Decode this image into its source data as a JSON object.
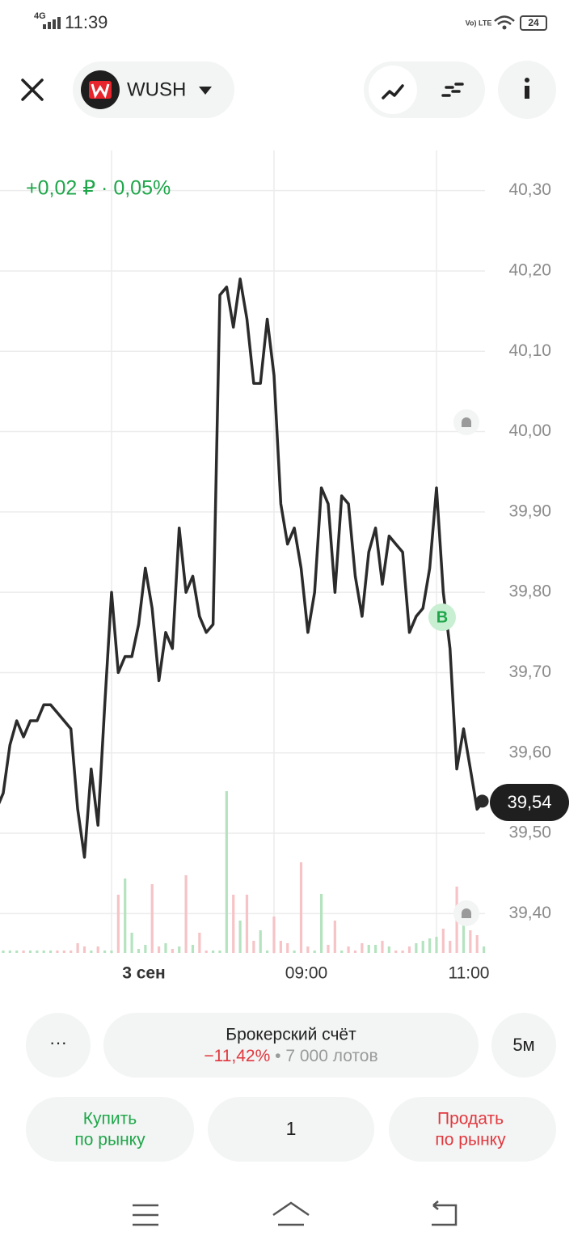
{
  "status_bar": {
    "network": "4G",
    "time": "11:39",
    "volte": "Vo) LTE",
    "battery": "24"
  },
  "header": {
    "ticker": "WUSH"
  },
  "chart_data": {
    "type": "line",
    "change_label": "+0,02 ₽ · 0,05%",
    "price_label": "39,54",
    "trade_marker": "B",
    "categories": [
      null,
      null,
      null,
      null,
      null,
      null,
      null,
      null,
      null,
      null,
      null,
      null,
      null,
      null,
      null,
      null,
      null,
      "3 сен",
      null,
      null,
      null,
      null,
      null,
      null,
      null,
      null,
      null,
      null,
      null,
      null,
      null,
      null,
      null,
      null,
      null,
      null,
      null,
      null,
      null,
      null,
      null,
      "09:00",
      null,
      null,
      null,
      null,
      null,
      null,
      null,
      null,
      null,
      null,
      null,
      null,
      null,
      null,
      null,
      null,
      null,
      null,
      null,
      null,
      null,
      null,
      null,
      "11:00",
      null,
      null,
      null,
      null,
      null,
      null,
      null
    ],
    "values": [
      39.53,
      39.55,
      39.61,
      39.64,
      39.62,
      39.64,
      39.64,
      39.66,
      39.66,
      39.65,
      39.64,
      39.63,
      39.53,
      39.47,
      39.58,
      39.51,
      39.66,
      39.8,
      39.7,
      39.72,
      39.72,
      39.76,
      39.83,
      39.78,
      39.69,
      39.75,
      39.73,
      39.88,
      39.8,
      39.82,
      39.77,
      39.75,
      39.76,
      40.17,
      40.18,
      40.13,
      40.19,
      40.14,
      40.06,
      40.06,
      40.14,
      40.07,
      39.91,
      39.86,
      39.88,
      39.83,
      39.75,
      39.8,
      39.93,
      39.91,
      39.8,
      39.92,
      39.91,
      39.82,
      39.77,
      39.85,
      39.88,
      39.81,
      39.87,
      39.86,
      39.85,
      39.75,
      39.77,
      39.78,
      39.83,
      39.93,
      39.8,
      39.73,
      39.58,
      39.63,
      39.58,
      39.53,
      39.54
    ],
    "color": "#2b2b2b",
    "ylim": [
      39.35,
      40.35
    ],
    "yticks": [
      {
        "value": 39.4,
        "label": "39,40"
      },
      {
        "value": 39.5,
        "label": "39,50"
      },
      {
        "value": 39.6,
        "label": "39,60"
      },
      {
        "value": 39.7,
        "label": "39,70"
      },
      {
        "value": 39.8,
        "label": "39,80"
      },
      {
        "value": 39.9,
        "label": "39,90"
      },
      {
        "value": 40.0,
        "label": "40,00"
      },
      {
        "value": 40.1,
        "label": "40,10"
      },
      {
        "value": 40.2,
        "label": "40,20"
      },
      {
        "value": 40.3,
        "label": "40,30"
      }
    ],
    "grid": true,
    "volume": {
      "axis": "y2",
      "y2lim": [
        0,
        210
      ],
      "up_color": "#b5e3bf",
      "down_color": "#f6c3c6",
      "values": [
        3,
        3,
        3,
        3,
        3,
        3,
        3,
        3,
        3,
        3,
        3,
        3,
        12,
        8,
        3,
        8,
        3,
        3,
        72,
        92,
        25,
        5,
        10,
        85,
        8,
        12,
        5,
        8,
        96,
        10,
        25,
        3,
        3,
        3,
        200,
        72,
        40,
        72,
        15,
        28,
        3,
        45,
        15,
        12,
        3,
        112,
        8,
        3,
        73,
        10,
        40,
        3,
        8,
        3,
        12,
        10,
        10,
        15,
        8,
        3,
        3,
        8,
        12,
        15,
        18,
        20,
        30,
        15,
        82,
        55,
        28,
        22,
        8
      ]
    }
  },
  "account": {
    "menu": "···",
    "title": "Брокерский счёт",
    "return": "−11,42%",
    "lots": "• 7 000 лотов",
    "interval": "5м"
  },
  "order": {
    "buy": [
      "Купить",
      "по рынку"
    ],
    "quantity": "1",
    "sell": [
      "Продать",
      "по рынку"
    ]
  }
}
